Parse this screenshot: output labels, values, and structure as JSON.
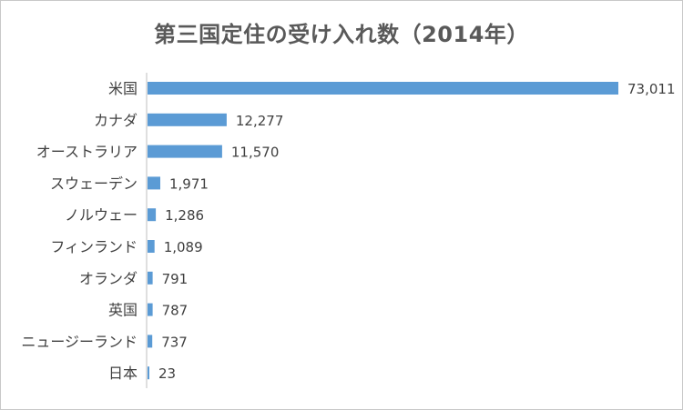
{
  "chart_data": {
    "type": "bar",
    "orientation": "horizontal",
    "title": "第三国定住の受け入れ数（2014年）",
    "categories": [
      "米国",
      "カナダ",
      "オーストラリア",
      "スウェーデン",
      "ノルウェー",
      "フィンランド",
      "オランダ",
      "英国",
      "ニュージーランド",
      "日本"
    ],
    "values": [
      73011,
      12277,
      11570,
      1971,
      1286,
      1089,
      791,
      787,
      737,
      23
    ],
    "value_labels": [
      "73,011",
      "12,277",
      "11,570",
      "1,971",
      "1,286",
      "1,089",
      "791",
      "787",
      "737",
      "23"
    ],
    "xlim": [
      0,
      73011
    ],
    "grid": false,
    "legend": "none",
    "colors": {
      "bar": "#5b9bd5",
      "axis": "#bfbfbf",
      "text": "#404040",
      "title": "#595959"
    }
  }
}
